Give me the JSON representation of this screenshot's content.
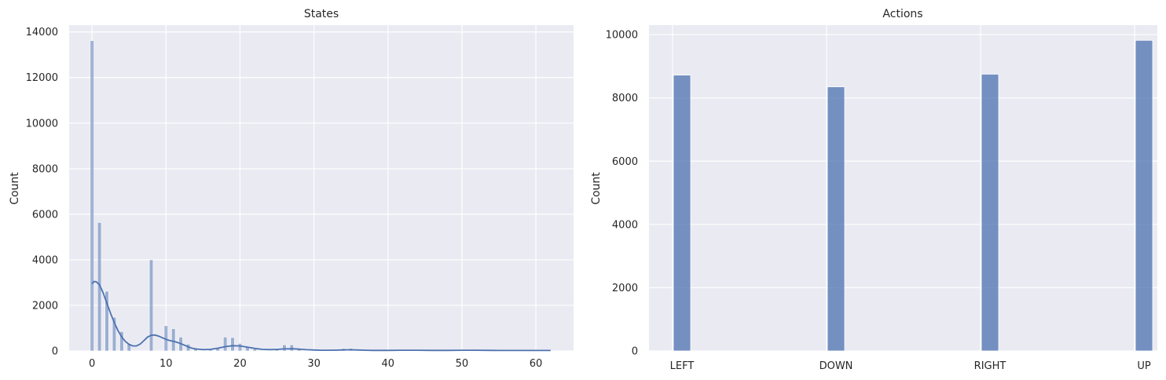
{
  "chart_data": [
    {
      "type": "histogram",
      "title": "States",
      "xlabel": "",
      "ylabel": "Count",
      "xlim": [
        -3.1,
        65.1
      ],
      "ylim": [
        0,
        14300
      ],
      "xticks": [
        0,
        10,
        20,
        30,
        40,
        50,
        60
      ],
      "yticks": [
        0,
        2000,
        4000,
        6000,
        8000,
        10000,
        12000,
        14000
      ],
      "bin_width": 0.5,
      "bar_color": "#4c72b0",
      "bar_opacity": 0.5,
      "bars": [
        {
          "x": 0,
          "value": 13620
        },
        {
          "x": 1,
          "value": 5640
        },
        {
          "x": 2,
          "value": 2620
        },
        {
          "x": 3,
          "value": 1480
        },
        {
          "x": 4,
          "value": 850
        },
        {
          "x": 5,
          "value": 330
        },
        {
          "x": 8,
          "value": 4000
        },
        {
          "x": 10,
          "value": 1110
        },
        {
          "x": 11,
          "value": 980
        },
        {
          "x": 12,
          "value": 610
        },
        {
          "x": 13,
          "value": 300
        },
        {
          "x": 14,
          "value": 90
        },
        {
          "x": 16,
          "value": 60
        },
        {
          "x": 17,
          "value": 110
        },
        {
          "x": 18,
          "value": 610
        },
        {
          "x": 19,
          "value": 590
        },
        {
          "x": 20,
          "value": 330
        },
        {
          "x": 21,
          "value": 190
        },
        {
          "x": 22,
          "value": 80
        },
        {
          "x": 25,
          "value": 110
        },
        {
          "x": 26,
          "value": 270
        },
        {
          "x": 27,
          "value": 270
        },
        {
          "x": 28,
          "value": 60
        },
        {
          "x": 33,
          "value": 40
        },
        {
          "x": 34,
          "value": 110
        },
        {
          "x": 35,
          "value": 120
        },
        {
          "x": 40,
          "value": 20
        },
        {
          "x": 42,
          "value": 30
        },
        {
          "x": 43,
          "value": 20
        },
        {
          "x": 48,
          "value": 20
        },
        {
          "x": 50,
          "value": 30
        },
        {
          "x": 52,
          "value": 20
        },
        {
          "x": 56,
          "value": 20
        },
        {
          "x": 58,
          "value": 20
        },
        {
          "x": 62,
          "value": 20
        }
      ],
      "kde": {
        "color": "#4c72b0",
        "x": [
          0,
          0.3,
          0.6,
          1,
          1.5,
          2,
          2.5,
          3,
          3.5,
          4,
          4.5,
          5,
          5.5,
          6,
          6.5,
          7,
          7.5,
          8,
          8.5,
          9,
          9.5,
          10,
          10.5,
          11,
          11.5,
          12,
          12.5,
          13,
          13.5,
          14,
          15,
          16,
          17,
          18,
          19,
          20,
          21,
          22,
          23,
          24,
          25,
          26,
          27,
          28,
          29,
          30,
          31,
          32,
          33,
          34,
          35,
          36,
          37,
          38,
          40,
          42,
          44,
          46,
          48,
          50,
          52,
          54,
          56,
          58,
          60,
          62
        ],
        "y": [
          2950,
          3050,
          3030,
          2900,
          2550,
          2100,
          1650,
          1250,
          900,
          620,
          420,
          290,
          220,
          220,
          300,
          450,
          610,
          690,
          700,
          650,
          580,
          510,
          460,
          420,
          380,
          320,
          250,
          180,
          120,
          90,
          60,
          70,
          120,
          190,
          230,
          220,
          170,
          110,
          70,
          60,
          70,
          90,
          95,
          80,
          55,
          40,
          30,
          30,
          35,
          45,
          50,
          40,
          30,
          25,
          25,
          30,
          30,
          25,
          25,
          30,
          30,
          25,
          20,
          20,
          20,
          20
        ]
      }
    },
    {
      "type": "bar",
      "title": "Actions",
      "xlabel": "",
      "ylabel": "Count",
      "ylim": [
        0,
        10300
      ],
      "yticks": [
        0,
        2000,
        4000,
        6000,
        8000,
        10000
      ],
      "categories": [
        "LEFT",
        "DOWN",
        "RIGHT",
        "UP"
      ],
      "values": [
        8720,
        8350,
        8750,
        9820
      ],
      "bar_color": "#4c72b0",
      "bar_opacity": 0.75
    }
  ]
}
